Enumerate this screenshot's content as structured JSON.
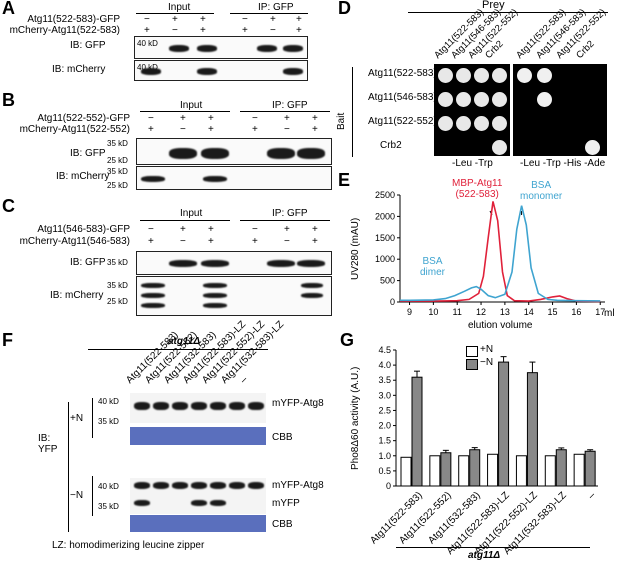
{
  "panels": {
    "A": "A",
    "B": "B",
    "C": "C",
    "D": "D",
    "E": "E",
    "F": "F",
    "G": "G"
  },
  "A": {
    "row1": "Atg11(522-583)-GFP",
    "row2": "mCherry-Atg11(522-583)",
    "signs1": [
      "−",
      "+",
      "+",
      "−",
      "+",
      "+"
    ],
    "signs2": [
      "+",
      "−",
      "+",
      "+",
      "−",
      "+"
    ],
    "input": "Input",
    "ip": "IP: GFP",
    "ib1": "IB: GFP",
    "ib2": "IB: mCherry",
    "mw1": "40 kD",
    "mw2": "40 kD"
  },
  "B": {
    "row1": "Atg11(522-552)-GFP",
    "row2": "mCherry-Atg11(522-552)",
    "signs1": [
      "−",
      "+",
      "+",
      "−",
      "+",
      "+"
    ],
    "signs2": [
      "+",
      "−",
      "+",
      "+",
      "−",
      "+"
    ],
    "input": "Input",
    "ip": "IP: GFP",
    "ib1": "IB: GFP",
    "ib2": "IB: mCherry",
    "mw": [
      "35 kD",
      "25 kD",
      "35 kD",
      "25 kD"
    ]
  },
  "C": {
    "row1": "Atg11(546-583)-GFP",
    "row2": "mCherry-Atg11(546-583)",
    "signs1": [
      "−",
      "+",
      "+",
      "−",
      "+",
      "+"
    ],
    "signs2": [
      "+",
      "−",
      "+",
      "+",
      "−",
      "+"
    ],
    "input": "Input",
    "ip": "IP: GFP",
    "ib1": "IB: GFP",
    "ib2": "IB: mCherry",
    "mw": [
      "35 kD",
      "35 kD",
      "25 kD"
    ]
  },
  "D": {
    "prey": "Prey",
    "bait": "Bait",
    "cols": [
      "Atg11(522-583)",
      "Atg11(546-583)",
      "Atg11(522-552)",
      "Crb2",
      "Atg11(522-583)",
      "Atg11(546-583)",
      "Atg11(522-552)",
      "Crb2"
    ],
    "rows": [
      "Atg11(522-583)",
      "Atg11(546-583)",
      "Atg11(522-552)",
      "Crb2"
    ],
    "media1": "-Leu -Trp",
    "media2": "-Leu -Trp -His -Ade"
  },
  "E": {
    "ylabel": "UV280 (mAU)",
    "xlabel": "elution volume",
    "unit": "ml",
    "yticks": [
      "0",
      "500",
      "1000",
      "1500",
      "2000",
      "2500"
    ],
    "xticks": [
      "9",
      "10",
      "11",
      "12",
      "13",
      "14",
      "15",
      "16",
      "17"
    ],
    "ann_mbp": "MBP-Atg11\n(522-583)",
    "ann_bsa_mono": "BSA\nmonomer",
    "ann_bsa_dimer": "BSA\ndimer",
    "colors": {
      "mbp": "#e0213a",
      "bsa": "#3fa4d0"
    }
  },
  "chart_data": {
    "type": "line",
    "xlabel": "elution volume",
    "ylabel": "UV280 (mAU)",
    "xlim": [
      8.6,
      17.2
    ],
    "ylim": [
      0,
      2500
    ],
    "series": [
      {
        "name": "MBP-Atg11 (522-583)",
        "color": "#e0213a",
        "x": [
          8.6,
          9,
          10,
          10.5,
          11,
          11.5,
          11.9,
          12.1,
          12.3,
          12.5,
          12.7,
          12.9,
          13.1,
          13.4,
          14,
          14.5,
          15,
          15.3,
          15.6,
          16,
          17
        ],
        "y": [
          20,
          20,
          20,
          25,
          30,
          60,
          200,
          600,
          1500,
          2350,
          1900,
          700,
          150,
          30,
          20,
          60,
          120,
          140,
          80,
          20,
          15
        ]
      },
      {
        "name": "BSA",
        "color": "#3fa4d0",
        "x": [
          8.6,
          9,
          10,
          10.5,
          10.9,
          11.3,
          11.6,
          11.8,
          12,
          12.3,
          12.6,
          13,
          13.3,
          13.5,
          13.7,
          13.9,
          14.1,
          14.4,
          14.8,
          15.2,
          16,
          17
        ],
        "y": [
          40,
          40,
          50,
          80,
          150,
          250,
          330,
          360,
          300,
          150,
          100,
          180,
          700,
          1700,
          2250,
          1800,
          800,
          200,
          60,
          40,
          30,
          25
        ]
      }
    ]
  },
  "F": {
    "strain": "atg11Δ",
    "lanes": [
      "Atg11(522-583)",
      "Atg11(522-552)",
      "Atg11(532-583)",
      "Atg11(522-583)-LZ",
      "Atg11(522-552)-LZ",
      "Atg11(532-583)-LZ",
      "–"
    ],
    "cond1": "+N",
    "cond2": "−N",
    "ib": "IB:\nYFP",
    "mw": [
      "40 kD",
      "35 kD",
      "40 kD",
      "35 kD"
    ],
    "r1": "mYFP-Atg8",
    "r2": "CBB",
    "r3": "mYFP-Atg8",
    "r4": "mYFP",
    "r5": "CBB",
    "footnote": "LZ: homodimerizing leucine zipper"
  },
  "G": {
    "ylabel": "Pho8Δ60 activity (A.U.)",
    "yticks": [
      "0",
      "0.5",
      "1.0",
      "1.5",
      "2.0",
      "2.5",
      "3.0",
      "3.5",
      "4.0",
      "4.5"
    ],
    "legend_pos": "+N",
    "legend_neg": "−N",
    "strain": "atg11Δ",
    "categories": [
      "Atg11(522-583)",
      "Atg11(522-552)",
      "Atg11(532-583)",
      "Atg11(522-583)-LZ",
      "Atg11(522-552)-LZ",
      "Atg11(532-583)-LZ",
      "–"
    ],
    "plusN": [
      0.95,
      1.0,
      1.0,
      1.05,
      1.0,
      1.0,
      1.05
    ],
    "minusN": [
      3.6,
      1.1,
      1.2,
      4.1,
      3.75,
      1.2,
      1.15
    ],
    "err": [
      0.2,
      0.08,
      0.07,
      0.18,
      0.35,
      0.06,
      0.05
    ]
  }
}
